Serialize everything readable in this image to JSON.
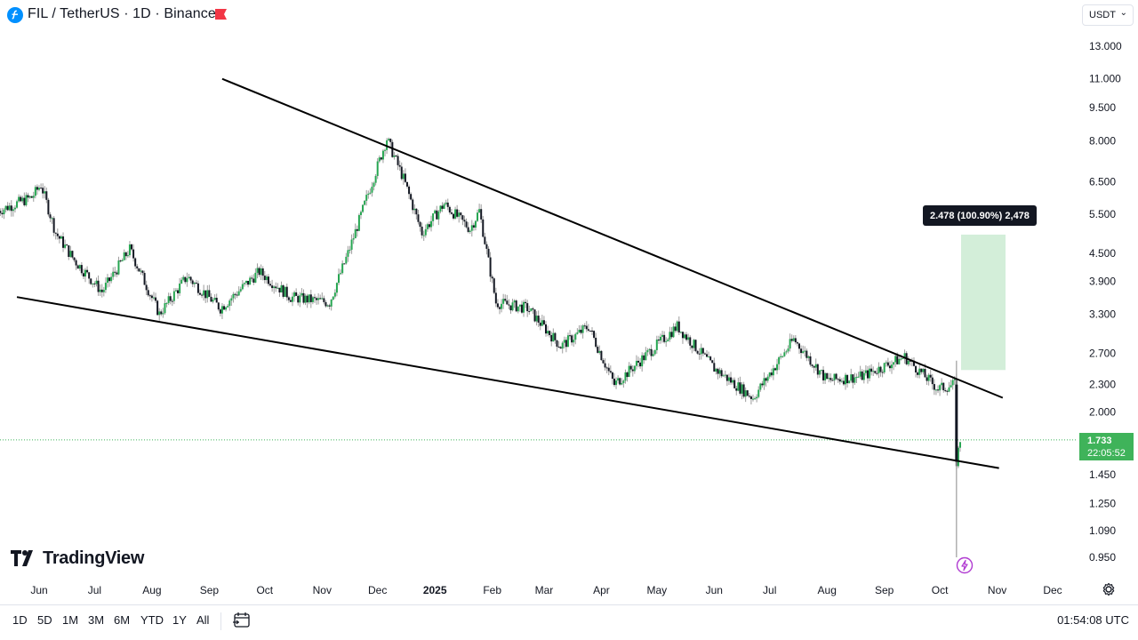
{
  "header": {
    "title": "FIL / TetherUS · 1D · Binance",
    "currency": "USDT"
  },
  "logo": {
    "text": "TradingView"
  },
  "price_badge": {
    "price": "1.733",
    "countdown": "22:05:52"
  },
  "measure": {
    "label": "2.478 (100.90%) 2,478"
  },
  "bottom_bar": {
    "ranges": [
      "1D",
      "5D",
      "1M",
      "3M",
      "6M",
      "YTD",
      "1Y",
      "All"
    ],
    "clock": "01:54:08 UTC"
  },
  "colors": {
    "up": "#26a651",
    "down": "#131722",
    "wick_gray": "#9c9c9c",
    "measure_fill": "#d3eed9",
    "badge": "#3fb35a"
  },
  "chart_data": {
    "type": "candlestick",
    "title": "FIL / TetherUS · 1D · Binance",
    "y_scale": "log",
    "y_ticks": [
      "13.000",
      "11.000",
      "9.500",
      "8.000",
      "6.500",
      "5.500",
      "4.500",
      "3.900",
      "3.300",
      "2.700",
      "2.300",
      "2.000",
      "1.450",
      "1.250",
      "1.090",
      "0.950"
    ],
    "x_ticks": [
      "Jun",
      "Jul",
      "Aug",
      "Sep",
      "Oct",
      "Nov",
      "Dec",
      "2025",
      "Feb",
      "Mar",
      "Apr",
      "May",
      "Jun",
      "Jul",
      "Aug",
      "Sep",
      "Oct",
      "Nov",
      "Dec"
    ],
    "last_price": 1.733,
    "low_wick": 0.95,
    "series": [
      {
        "x": "2024-05-10",
        "y": 5.6
      },
      {
        "x": "2024-05-28",
        "y": 6.0
      },
      {
        "x": "2024-06-02",
        "y": 6.4
      },
      {
        "x": "2024-06-10",
        "y": 5.0
      },
      {
        "x": "2024-06-20",
        "y": 4.35
      },
      {
        "x": "2024-07-05",
        "y": 3.7
      },
      {
        "x": "2024-07-20",
        "y": 4.6
      },
      {
        "x": "2024-08-05",
        "y": 3.3
      },
      {
        "x": "2024-08-20",
        "y": 4.0
      },
      {
        "x": "2024-09-07",
        "y": 3.4
      },
      {
        "x": "2024-09-28",
        "y": 4.1
      },
      {
        "x": "2024-10-15",
        "y": 3.6
      },
      {
        "x": "2024-11-05",
        "y": 3.5
      },
      {
        "x": "2024-11-15",
        "y": 4.5
      },
      {
        "x": "2024-12-06",
        "y": 8.1
      },
      {
        "x": "2024-12-15",
        "y": 6.6
      },
      {
        "x": "2024-12-25",
        "y": 5.0
      },
      {
        "x": "2025-01-06",
        "y": 5.8
      },
      {
        "x": "2025-01-20",
        "y": 5.1
      },
      {
        "x": "2025-01-25",
        "y": 5.6
      },
      {
        "x": "2025-02-03",
        "y": 3.5
      },
      {
        "x": "2025-02-20",
        "y": 3.4
      },
      {
        "x": "2025-03-10",
        "y": 2.8
      },
      {
        "x": "2025-03-25",
        "y": 3.1
      },
      {
        "x": "2025-04-08",
        "y": 2.3
      },
      {
        "x": "2025-05-12",
        "y": 3.1
      },
      {
        "x": "2025-06-01",
        "y": 2.5
      },
      {
        "x": "2025-06-22",
        "y": 2.15
      },
      {
        "x": "2025-07-14",
        "y": 2.9
      },
      {
        "x": "2025-08-01",
        "y": 2.35
      },
      {
        "x": "2025-08-20",
        "y": 2.4
      },
      {
        "x": "2025-09-12",
        "y": 2.65
      },
      {
        "x": "2025-09-30",
        "y": 2.25
      },
      {
        "x": "2025-10-09",
        "y": 2.3
      },
      {
        "x": "2025-10-10",
        "y": 1.55
      },
      {
        "x": "2025-10-12",
        "y": 1.733
      }
    ],
    "trendlines": [
      {
        "name": "upper",
        "from": {
          "x": "2024-09-08",
          "y": 11.0
        },
        "to": {
          "x": "2025-11-04",
          "y": 2.15
        }
      },
      {
        "name": "lower",
        "from": {
          "x": "2024-05-20",
          "y": 3.6
        },
        "to": {
          "x": "2025-11-02",
          "y": 1.5
        }
      }
    ],
    "measure_box": {
      "y_from": 2.478,
      "y_to": 4.956
    }
  }
}
